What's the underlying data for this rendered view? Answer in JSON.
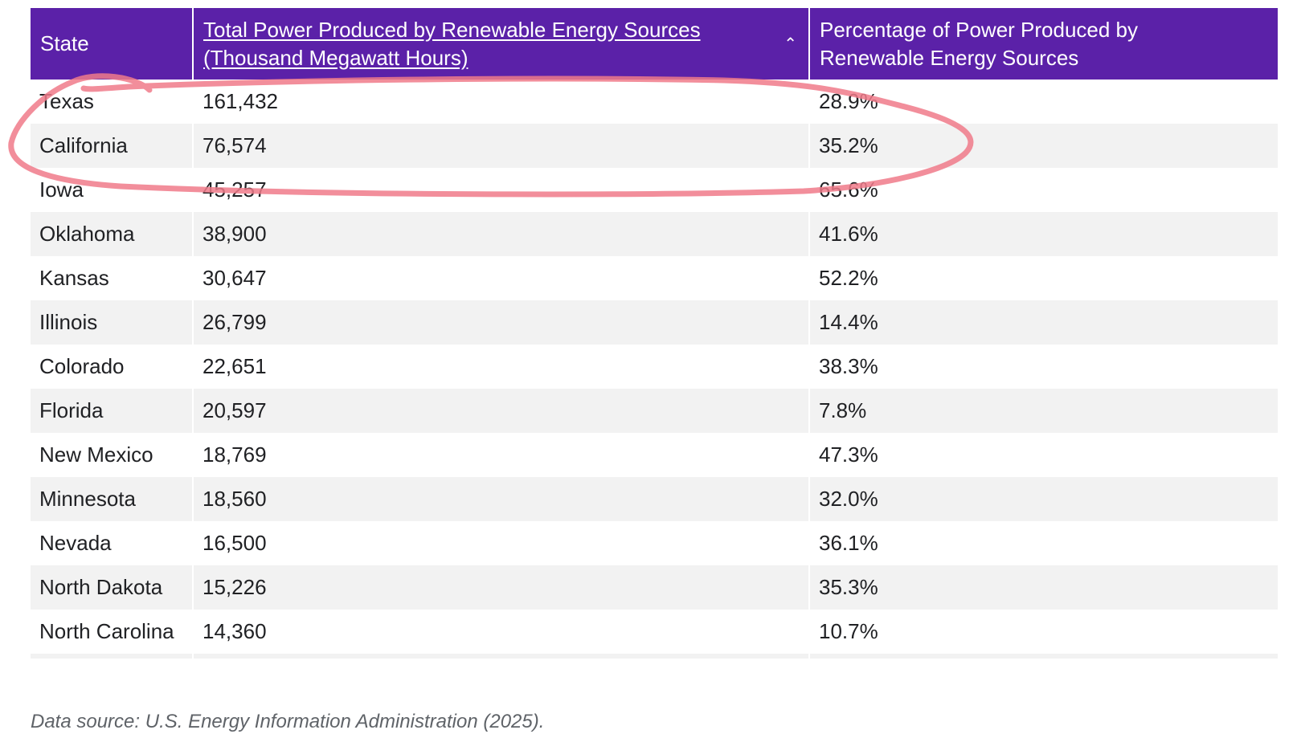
{
  "colors": {
    "header_background": "#5b21a8",
    "header_text": "#ffffff",
    "row_stripe": "#f2f2f2",
    "annotation_stroke": "#f07a8a"
  },
  "table": {
    "headers": {
      "state": "State",
      "total_power_line1": "Total Power Produced by Renewable Energy Sources",
      "total_power_line2": "(Thousand Megawatt Hours)",
      "sort_icon": "chevron-up-icon",
      "percentage_line1": "Percentage of Power Produced by",
      "percentage_line2": "Renewable Energy Sources"
    },
    "sort": {
      "column": "total_power",
      "direction": "descending"
    },
    "rows": [
      {
        "state": "Texas",
        "total": "161,432",
        "pct": "28.9%"
      },
      {
        "state": "California",
        "total": "76,574",
        "pct": "35.2%"
      },
      {
        "state": "Iowa",
        "total": "45,257",
        "pct": "65.6%"
      },
      {
        "state": "Oklahoma",
        "total": "38,900",
        "pct": "41.6%"
      },
      {
        "state": "Kansas",
        "total": "30,647",
        "pct": "52.2%"
      },
      {
        "state": "Illinois",
        "total": "26,799",
        "pct": "14.4%"
      },
      {
        "state": "Colorado",
        "total": "22,651",
        "pct": "38.3%"
      },
      {
        "state": "Florida",
        "total": "20,597",
        "pct": "7.8%"
      },
      {
        "state": "New Mexico",
        "total": "18,769",
        "pct": "47.3%"
      },
      {
        "state": "Minnesota",
        "total": "18,560",
        "pct": "32.0%"
      },
      {
        "state": "Nevada",
        "total": "16,500",
        "pct": "36.1%"
      },
      {
        "state": "North Dakota",
        "total": "15,226",
        "pct": "35.3%"
      },
      {
        "state": "North Carolina",
        "total": "14,360",
        "pct": "10.7%"
      }
    ]
  },
  "footer": {
    "source": "Data source: U.S. Energy Information Administration (2025)."
  }
}
